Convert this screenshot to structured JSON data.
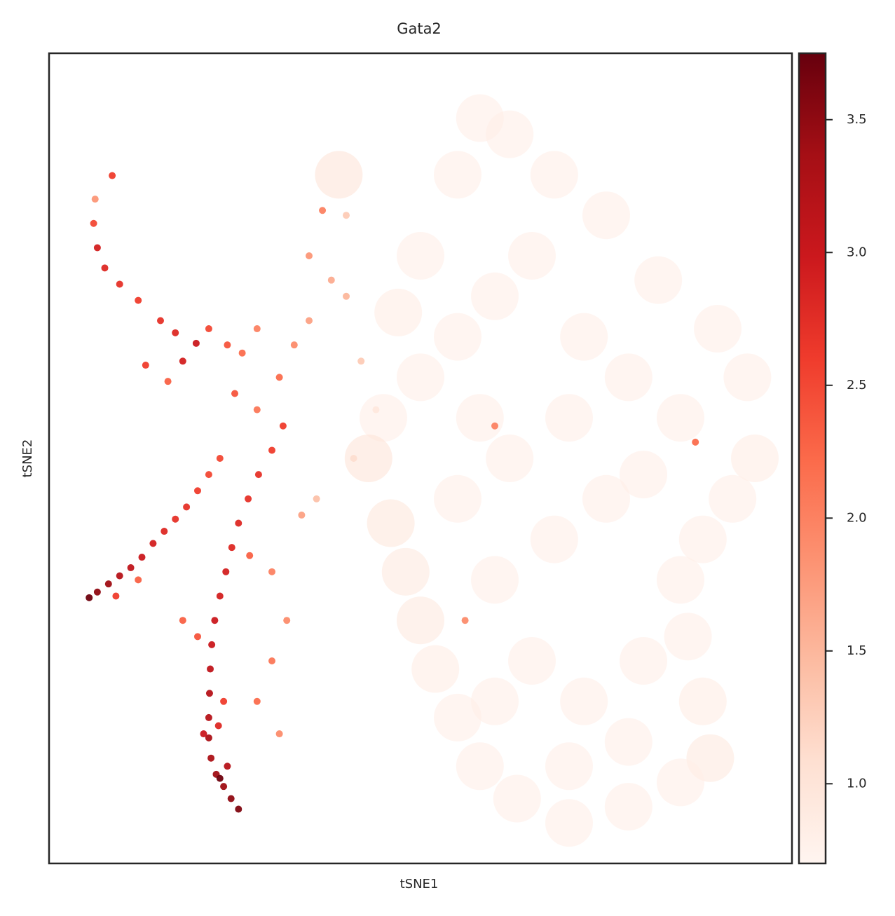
{
  "chart_data": {
    "type": "scatter",
    "title": "Gata2",
    "xlabel": "tSNE1",
    "ylabel": "tSNE2",
    "xlim": [
      0,
      100
    ],
    "ylim": [
      0,
      100
    ],
    "colormap": "Reds",
    "x": [
      25.5,
      24.5,
      23.5,
      22.5,
      21.8,
      21.5,
      21.5,
      21.6,
      21.7,
      21.9,
      22.3,
      23,
      23.8,
      24.6,
      25.5,
      26.8,
      28.2,
      30,
      31.5,
      23,
      24,
      20.8,
      22.8,
      23.5,
      5.4,
      6.5,
      8,
      9.5,
      11,
      12.5,
      14,
      15.5,
      17,
      18.5,
      20,
      21.5,
      23,
      9,
      12,
      19.8,
      17,
      21.5,
      24,
      18,
      15,
      12,
      9.5,
      7.5,
      6.5,
      6,
      6.2,
      8.5,
      26,
      28,
      13,
      16,
      25,
      28,
      31,
      33,
      35,
      36.8,
      35,
      38,
      40,
      42,
      30,
      32,
      30,
      28,
      31,
      27,
      34,
      20,
      18,
      36,
      41,
      44,
      40,
      39,
      45,
      50,
      55,
      60,
      65,
      55,
      58,
      62,
      68,
      75,
      82,
      90,
      94,
      95,
      92,
      88,
      85,
      86,
      88,
      89,
      85,
      78,
      70,
      63,
      58,
      55,
      52,
      50,
      48,
      46,
      43,
      55,
      62,
      70,
      78,
      85,
      60,
      68,
      75,
      65,
      72,
      80,
      70,
      78,
      60,
      50,
      47,
      72,
      80,
      58,
      60,
      87,
      56
    ],
    "y": [
      6.7,
      8,
      9.5,
      11,
      13,
      15.5,
      18,
      21,
      24,
      27,
      30,
      33,
      36,
      39,
      42,
      45,
      48,
      51,
      54,
      10.5,
      12,
      16,
      17,
      20,
      32.8,
      33.5,
      34.5,
      35.5,
      36.5,
      37.8,
      39.5,
      41,
      42.5,
      44,
      46,
      48,
      50,
      33,
      35,
      64.2,
      65.5,
      66,
      64,
      62,
      67,
      69.5,
      71.5,
      73.5,
      76,
      79,
      82,
      84.9,
      63,
      66,
      61.5,
      59.5,
      58,
      56,
      60,
      64,
      67,
      80.6,
      75,
      72,
      70,
      62,
      36,
      30,
      25,
      20,
      16,
      38,
      43,
      28,
      30,
      45,
      50,
      56,
      80,
      85,
      55,
      60,
      65,
      70,
      75,
      85,
      92,
      90,
      85,
      80,
      72,
      66,
      60,
      50,
      45,
      40,
      35,
      28,
      20,
      13,
      10,
      7,
      5,
      8,
      12,
      18,
      24,
      30,
      36,
      42,
      50,
      45,
      50,
      55,
      60,
      55,
      35,
      40,
      45,
      25,
      20,
      25,
      12,
      15,
      20,
      75,
      68,
      65,
      48,
      55,
      54,
      52,
      30
    ],
    "values": [
      3.6,
      3.5,
      3.4,
      3.4,
      3.3,
      3.3,
      3.2,
      3.2,
      3.1,
      3.0,
      3.0,
      2.9,
      2.9,
      2.8,
      2.8,
      2.7,
      2.7,
      2.6,
      2.6,
      3.7,
      3.2,
      3.0,
      2.8,
      2.6,
      3.7,
      3.5,
      3.4,
      3.2,
      3.1,
      3.0,
      2.9,
      2.8,
      2.7,
      2.7,
      2.6,
      2.5,
      2.5,
      2.6,
      2.3,
      3.0,
      2.8,
      2.5,
      2.4,
      2.9,
      2.7,
      2.6,
      2.7,
      2.8,
      2.9,
      2.5,
      1.8,
      2.6,
      2.2,
      2.0,
      2.6,
      2.3,
      2.4,
      2.1,
      2.2,
      1.9,
      1.7,
      2.0,
      1.8,
      1.6,
      1.5,
      1.3,
      2.0,
      1.9,
      2.1,
      2.2,
      1.9,
      2.3,
      1.7,
      2.4,
      2.3,
      1.4,
      1.2,
      1.1,
      1.3,
      1.0,
      0.8,
      0.8,
      0.8,
      0.8,
      0.8,
      0.8,
      0.8,
      0.8,
      0.8,
      0.8,
      0.8,
      0.8,
      0.8,
      0.85,
      0.8,
      0.8,
      0.8,
      0.8,
      0.85,
      0.9,
      0.8,
      0.8,
      0.8,
      0.8,
      0.8,
      0.8,
      0.85,
      0.9,
      0.9,
      0.95,
      1.0,
      0.8,
      0.8,
      0.8,
      0.8,
      0.8,
      0.8,
      0.8,
      0.8,
      0.8,
      0.8,
      0.8,
      0.8,
      0.8,
      0.8,
      0.8,
      0.85,
      0.8,
      0.8,
      0.8,
      2.0,
      2.2,
      1.9
    ],
    "clim": [
      0.7,
      3.75
    ],
    "cticks": [
      {
        "value": 1.0,
        "label": "1.0"
      },
      1.5,
      {
        "value": 2.0,
        "label": "2.0"
      },
      2.5,
      {
        "value": 3.0,
        "label": "3.0"
      },
      3.5
    ]
  }
}
